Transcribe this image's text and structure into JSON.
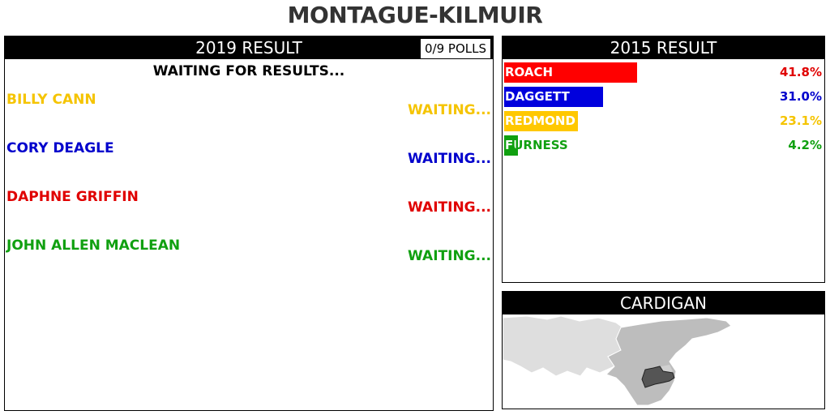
{
  "page_title": "MONTAGUE-KILMUIR",
  "result_2019": {
    "header": "2019 RESULT",
    "polls": "0/9 POLLS",
    "waiting_text": "WAITING FOR RESULTS...",
    "candidates": [
      {
        "name": "BILLY CANN",
        "status": "WAITING...",
        "color": "#f5c400"
      },
      {
        "name": "CORY DEAGLE",
        "status": "WAITING...",
        "color": "#0000cc"
      },
      {
        "name": "DAPHNE GRIFFIN",
        "status": "WAITING...",
        "color": "#e00000"
      },
      {
        "name": "JOHN ALLEN MACLEAN",
        "status": "WAITING...",
        "color": "#10a010"
      }
    ]
  },
  "result_2015": {
    "header": "2015 RESULT",
    "parties": [
      {
        "name": "ROACH",
        "pct_label": "41.8%",
        "share": 41.8,
        "color": "#ff0000",
        "text_color": "#e00000"
      },
      {
        "name": "DAGGETT",
        "pct_label": "31.0%",
        "share": 31.0,
        "color": "#0000dd",
        "text_color": "#0000cc"
      },
      {
        "name": "REDMOND",
        "pct_label": "23.1%",
        "share": 23.1,
        "color": "#ffc800",
        "text_color": "#f5c400"
      },
      {
        "name": "FURNESS",
        "pct_label": "4.2%",
        "share": 4.2,
        "color": "#10a010",
        "text_color": "#10a010"
      }
    ]
  },
  "map": {
    "header": "CARDIGAN"
  }
}
